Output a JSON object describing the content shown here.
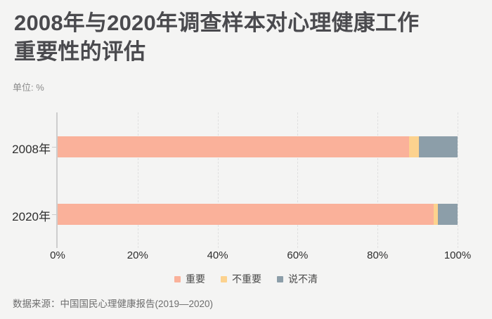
{
  "title": {
    "line1": "2008年与2020年调查样本对心理健康工作",
    "line2": "重要性的评估"
  },
  "unit_label": "单位: %",
  "source_label": "数据来源：中国国民心理健康报告(2019—2020)",
  "colors": {
    "background": "#f4f4f3",
    "title_text": "#4a4a4e",
    "axis_line": "#cdcdcd",
    "gridline": "#e0e0e0",
    "important": "#fab19a",
    "not_important": "#fcd28e",
    "unclear": "#8c9ea9"
  },
  "chart_data": {
    "type": "bar",
    "orientation": "horizontal",
    "stacked": true,
    "title": "2008年与2020年调查样本对心理健康工作重要性的评估",
    "unit": "%",
    "categories": [
      "2008年",
      "2020年"
    ],
    "series": [
      {
        "name": "重要",
        "color": "#fab19a",
        "values": [
          87.9,
          94.0
        ]
      },
      {
        "name": "不重要",
        "color": "#fcd28e",
        "values": [
          2.4,
          1.0
        ]
      },
      {
        "name": "说不清",
        "color": "#8c9ea9",
        "values": [
          9.7,
          5.0
        ]
      }
    ],
    "xlim": [
      0,
      100
    ],
    "xticks": [
      "0%",
      "20%",
      "40%",
      "60%",
      "80%",
      "100%"
    ],
    "grid": "dashed-vertical",
    "legend_position": "bottom",
    "source": "数据来源：中国国民心理健康报告(2019—2020)"
  }
}
